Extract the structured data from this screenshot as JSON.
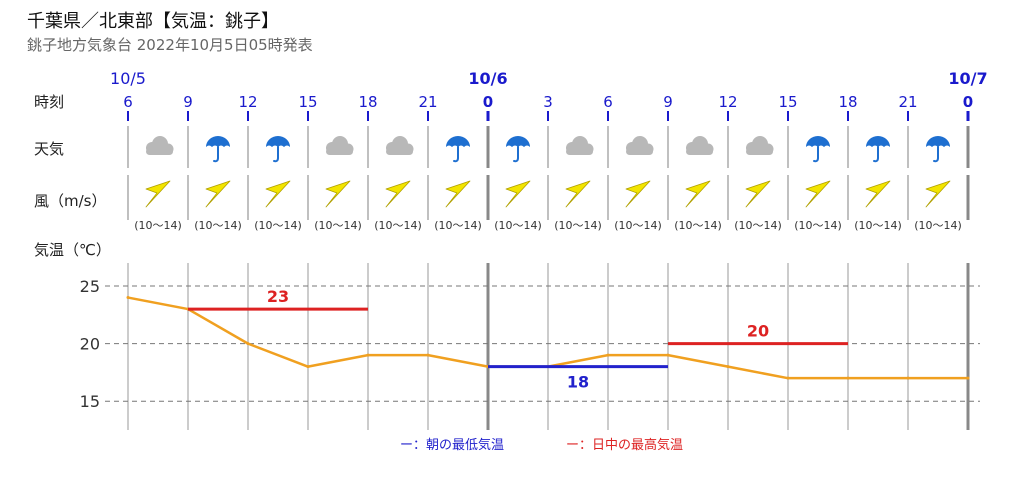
{
  "title": "千葉県／北東部【気温：銚子】",
  "subtitle": "銚子地方気象台 2022年10月5日05時発表",
  "row_labels": {
    "time": "時刻",
    "weather": "天気",
    "wind": "風（m/s）",
    "temperature": "気温（℃）"
  },
  "legend": {
    "min_label": "ー：朝の最低気温",
    "max_label": "ー：日中の最高気温"
  },
  "colors": {
    "time_text": "#1a1acc",
    "line": "#f0a020",
    "max": "#dd2222",
    "min": "#2222cc",
    "cloud": "#b8b8b8",
    "umbrella": "#1e6fd0",
    "wind_arrow": "#f2e400"
  },
  "chart_data": {
    "type": "line",
    "date_labels": [
      "10/5",
      "10/6",
      "10/7"
    ],
    "hours": [
      "6",
      "9",
      "12",
      "15",
      "18",
      "21",
      "0",
      "3",
      "6",
      "9",
      "12",
      "15",
      "18",
      "21",
      "0"
    ],
    "weather": [
      "cloud-icon",
      "umbrella-icon",
      "umbrella-icon",
      "cloud-icon",
      "cloud-icon",
      "umbrella-icon",
      "umbrella-icon",
      "cloud-icon",
      "cloud-icon",
      "cloud-icon",
      "cloud-icon",
      "umbrella-icon",
      "umbrella-icon",
      "umbrella-icon"
    ],
    "wind": [
      "(10～14)",
      "(10～14)",
      "(10～14)",
      "(10～14)",
      "(10～14)",
      "(10～14)",
      "(10～14)",
      "(10～14)",
      "(10～14)",
      "(10～14)",
      "(10～14)",
      "(10～14)",
      "(10～14)",
      "(10～14)"
    ],
    "y_ticks": [
      25,
      20,
      15
    ],
    "ylim": [
      12.5,
      27
    ],
    "temperature": [
      24,
      23,
      20,
      18,
      19,
      19,
      18,
      18,
      19,
      19,
      18,
      17,
      17,
      17,
      17
    ],
    "max_temps": [
      {
        "value": 23,
        "label": "23",
        "from": 1,
        "to": 4
      },
      {
        "value": 20,
        "label": "20",
        "from": 9,
        "to": 12
      }
    ],
    "min_temps": [
      {
        "value": 18,
        "label": "18",
        "from": 6,
        "to": 9
      }
    ]
  }
}
